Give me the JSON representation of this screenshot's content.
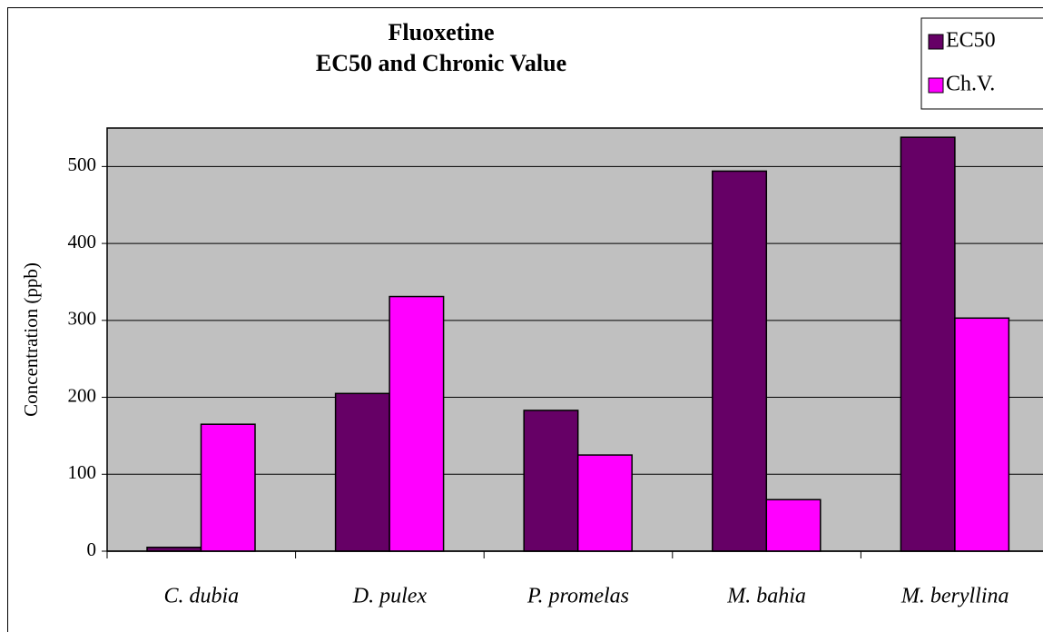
{
  "chart_data": {
    "type": "bar",
    "title": [
      "Fluoxetine",
      "EC50 and Chronic Value"
    ],
    "y_label": "Concentration (ppb)",
    "categories": [
      "C. dubia",
      "D. pulex",
      "P. promelas",
      "M. bahia",
      "M. beryllina"
    ],
    "series": [
      {
        "name": "EC50",
        "color": "#660066",
        "values": [
          5,
          205,
          183,
          494,
          538
        ]
      },
      {
        "name": "Ch.V.",
        "color": "#ff00ff",
        "values": [
          165,
          331,
          125,
          67,
          303
        ]
      }
    ],
    "ylim": [
      0,
      550
    ],
    "yticks": [
      0,
      100,
      200,
      300,
      400,
      500
    ],
    "grid": true,
    "legend": "top-right",
    "background": "#c0c0c0"
  }
}
